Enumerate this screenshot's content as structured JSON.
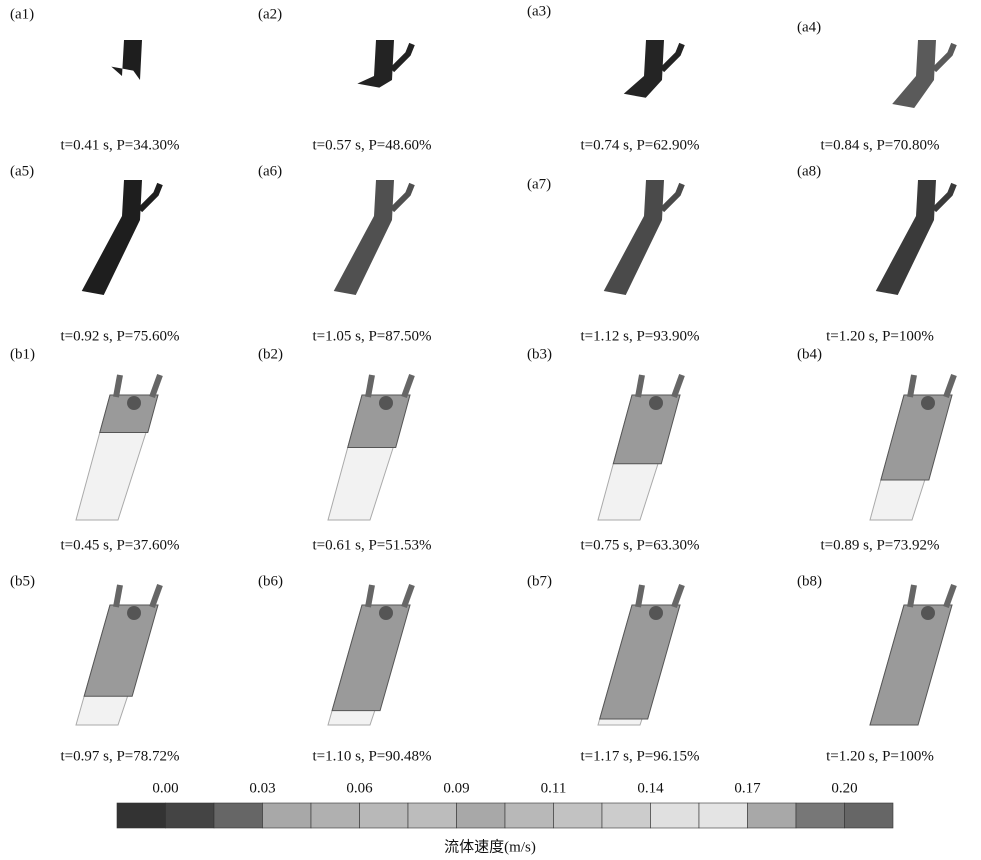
{
  "panels": [
    {
      "label": "(a1)",
      "caption": "t=0.41 s, P=34.30%"
    },
    {
      "label": "(a2)",
      "caption": "t=0.57 s, P=48.60%"
    },
    {
      "label": "(a3)",
      "caption": "t=0.74 s, P=62.90%"
    },
    {
      "label": "(a4)",
      "caption": "t=0.84 s, P=70.80%"
    },
    {
      "label": "(a5)",
      "caption": "t=0.92 s, P=75.60%"
    },
    {
      "label": "(a6)",
      "caption": "t=1.05 s, P=87.50%"
    },
    {
      "label": "(a7)",
      "caption": "t=1.12 s, P=93.90%"
    },
    {
      "label": "(a8)",
      "caption": "t=1.20 s, P=100%"
    },
    {
      "label": "(b1)",
      "caption": "t=0.45 s, P=37.60%"
    },
    {
      "label": "(b2)",
      "caption": "t=0.61 s, P=51.53%"
    },
    {
      "label": "(b3)",
      "caption": "t=0.75 s, P=63.30%"
    },
    {
      "label": "(b4)",
      "caption": "t=0.89 s, P=73.92%"
    },
    {
      "label": "(b5)",
      "caption": "t=0.97 s, P=78.72%"
    },
    {
      "label": "(b6)",
      "caption": "t=1.10 s, P=90.48%"
    },
    {
      "label": "(b7)",
      "caption": "t=1.17 s, P=96.15%"
    },
    {
      "label": "(b8)",
      "caption": "t=1.20 s, P=100%"
    }
  ],
  "colorbar": {
    "ticks": [
      "0.00",
      "0.03",
      "0.06",
      "0.09",
      "0.11",
      "0.14",
      "0.17",
      "0.20"
    ],
    "title": "流体速度(m/s)",
    "colors": [
      "#333333",
      "#444444",
      "#666666",
      "#a8a8a8",
      "#b0b0b0",
      "#b8b8b8",
      "#bcbcbc",
      "#a8a8a8",
      "#b8b8b8",
      "#c2c2c2",
      "#cccccc",
      "#e0e0e0",
      "#e4e4e4",
      "#a8a8a8",
      "#777777",
      "#666666"
    ]
  }
}
